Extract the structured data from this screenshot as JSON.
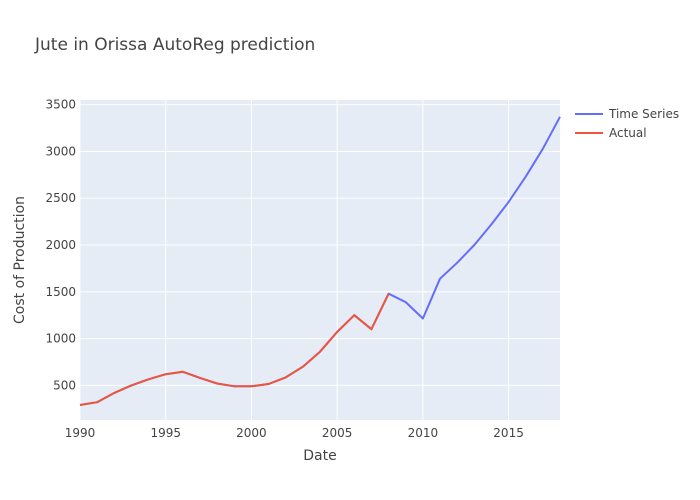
{
  "chart_data": {
    "type": "line",
    "title": "Jute in Orissa AutoReg prediction",
    "xlabel": "Date",
    "ylabel": "Cost of Production",
    "xlim": [
      1990,
      2018
    ],
    "ylim": [
      130,
      3550
    ],
    "x_ticks": [
      1990,
      1995,
      2000,
      2005,
      2010,
      2015
    ],
    "y_ticks": [
      500,
      1000,
      1500,
      2000,
      2500,
      3000,
      3500
    ],
    "grid": true,
    "legend_position": "top-right",
    "series": [
      {
        "name": "Time Series",
        "color": "#636efa",
        "x": [
          1990,
          1991,
          1992,
          1993,
          1994,
          1995,
          1996,
          1997,
          1998,
          1999,
          2000,
          2001,
          2002,
          2003,
          2004,
          2005,
          2006,
          2007,
          2008,
          2009,
          2010,
          2011,
          2012,
          2013,
          2014,
          2015,
          2016,
          2017,
          2018
        ],
        "y": [
          290,
          320,
          420,
          500,
          565,
          620,
          645,
          580,
          520,
          490,
          490,
          515,
          585,
          700,
          860,
          1070,
          1250,
          1100,
          1480,
          1390,
          1215,
          1640,
          1810,
          2000,
          2220,
          2460,
          2730,
          3030,
          3370
        ]
      },
      {
        "name": "Actual",
        "color": "#ef553b",
        "x": [
          1990,
          1991,
          1992,
          1993,
          1994,
          1995,
          1996,
          1997,
          1998,
          1999,
          2000,
          2001,
          2002,
          2003,
          2004,
          2005,
          2006,
          2007,
          2008
        ],
        "y": [
          290,
          320,
          420,
          500,
          565,
          620,
          645,
          580,
          520,
          490,
          490,
          515,
          585,
          700,
          860,
          1070,
          1250,
          1100,
          1480
        ]
      }
    ]
  }
}
